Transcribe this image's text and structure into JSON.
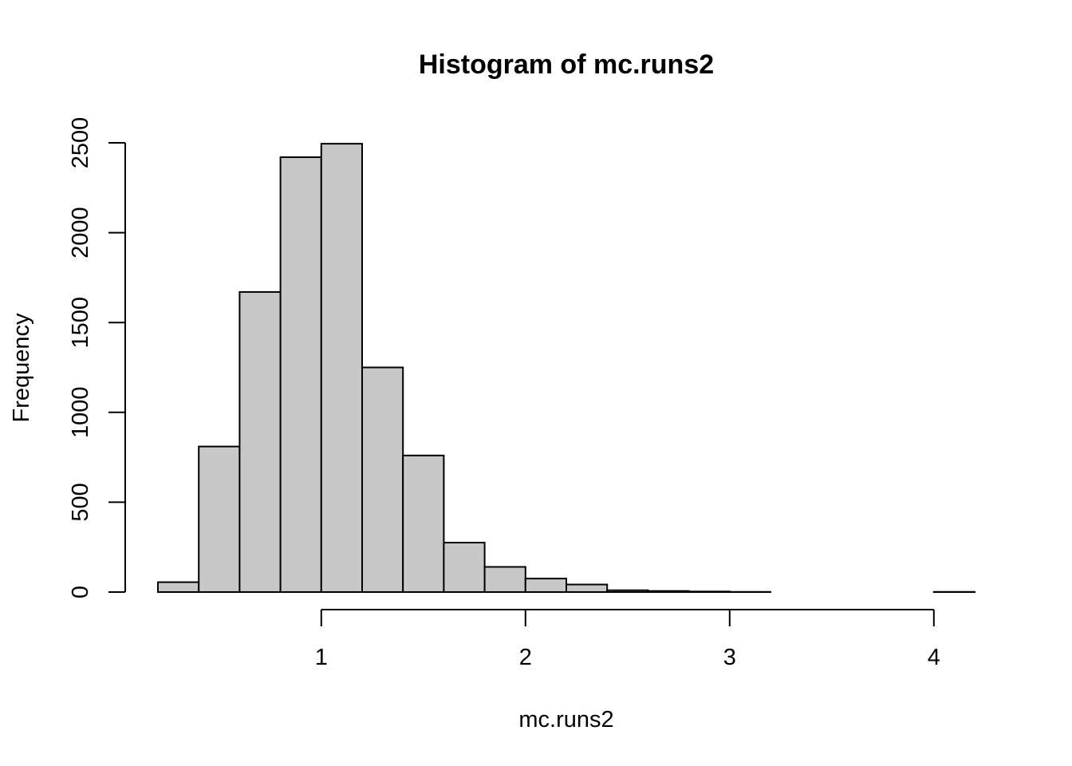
{
  "chart_data": {
    "type": "bar",
    "title": "Histogram of mc.runs2",
    "xlabel": "mc.runs2",
    "ylabel": "Frequency",
    "bin_width": 0.2,
    "bins": [
      {
        "start": 0.2,
        "end": 0.4,
        "count": 55
      },
      {
        "start": 0.4,
        "end": 0.6,
        "count": 810
      },
      {
        "start": 0.6,
        "end": 0.8,
        "count": 1670
      },
      {
        "start": 0.8,
        "end": 1.0,
        "count": 2420
      },
      {
        "start": 1.0,
        "end": 1.2,
        "count": 2495
      },
      {
        "start": 1.2,
        "end": 1.4,
        "count": 1250
      },
      {
        "start": 1.4,
        "end": 1.6,
        "count": 760
      },
      {
        "start": 1.6,
        "end": 1.8,
        "count": 275
      },
      {
        "start": 1.8,
        "end": 2.0,
        "count": 140
      },
      {
        "start": 2.0,
        "end": 2.2,
        "count": 75
      },
      {
        "start": 2.2,
        "end": 2.4,
        "count": 42
      },
      {
        "start": 2.4,
        "end": 2.6,
        "count": 10
      },
      {
        "start": 2.6,
        "end": 2.8,
        "count": 6
      },
      {
        "start": 2.8,
        "end": 3.0,
        "count": 3
      },
      {
        "start": 3.0,
        "end": 3.2,
        "count": 1
      },
      {
        "start": 3.2,
        "end": 3.4,
        "count": 0
      },
      {
        "start": 3.4,
        "end": 3.6,
        "count": 0
      },
      {
        "start": 3.6,
        "end": 3.8,
        "count": 0
      },
      {
        "start": 3.8,
        "end": 4.0,
        "count": 0
      },
      {
        "start": 4.0,
        "end": 4.2,
        "count": 1
      }
    ],
    "x_ticks": [
      {
        "value": 1,
        "label": "1"
      },
      {
        "value": 2,
        "label": "2"
      },
      {
        "value": 3,
        "label": "3"
      },
      {
        "value": 4,
        "label": "4"
      }
    ],
    "y_ticks": [
      {
        "value": 0,
        "label": "0"
      },
      {
        "value": 500,
        "label": "500"
      },
      {
        "value": 1000,
        "label": "1000"
      },
      {
        "value": 1500,
        "label": "1500"
      },
      {
        "value": 2000,
        "label": "2000"
      },
      {
        "value": 2500,
        "label": "2500"
      }
    ],
    "xlim": [
      0.2,
      4.2
    ],
    "ylim": [
      0,
      2500
    ],
    "grid": false,
    "bar_color": "#c8c8c8",
    "edge_color": "#000000"
  }
}
